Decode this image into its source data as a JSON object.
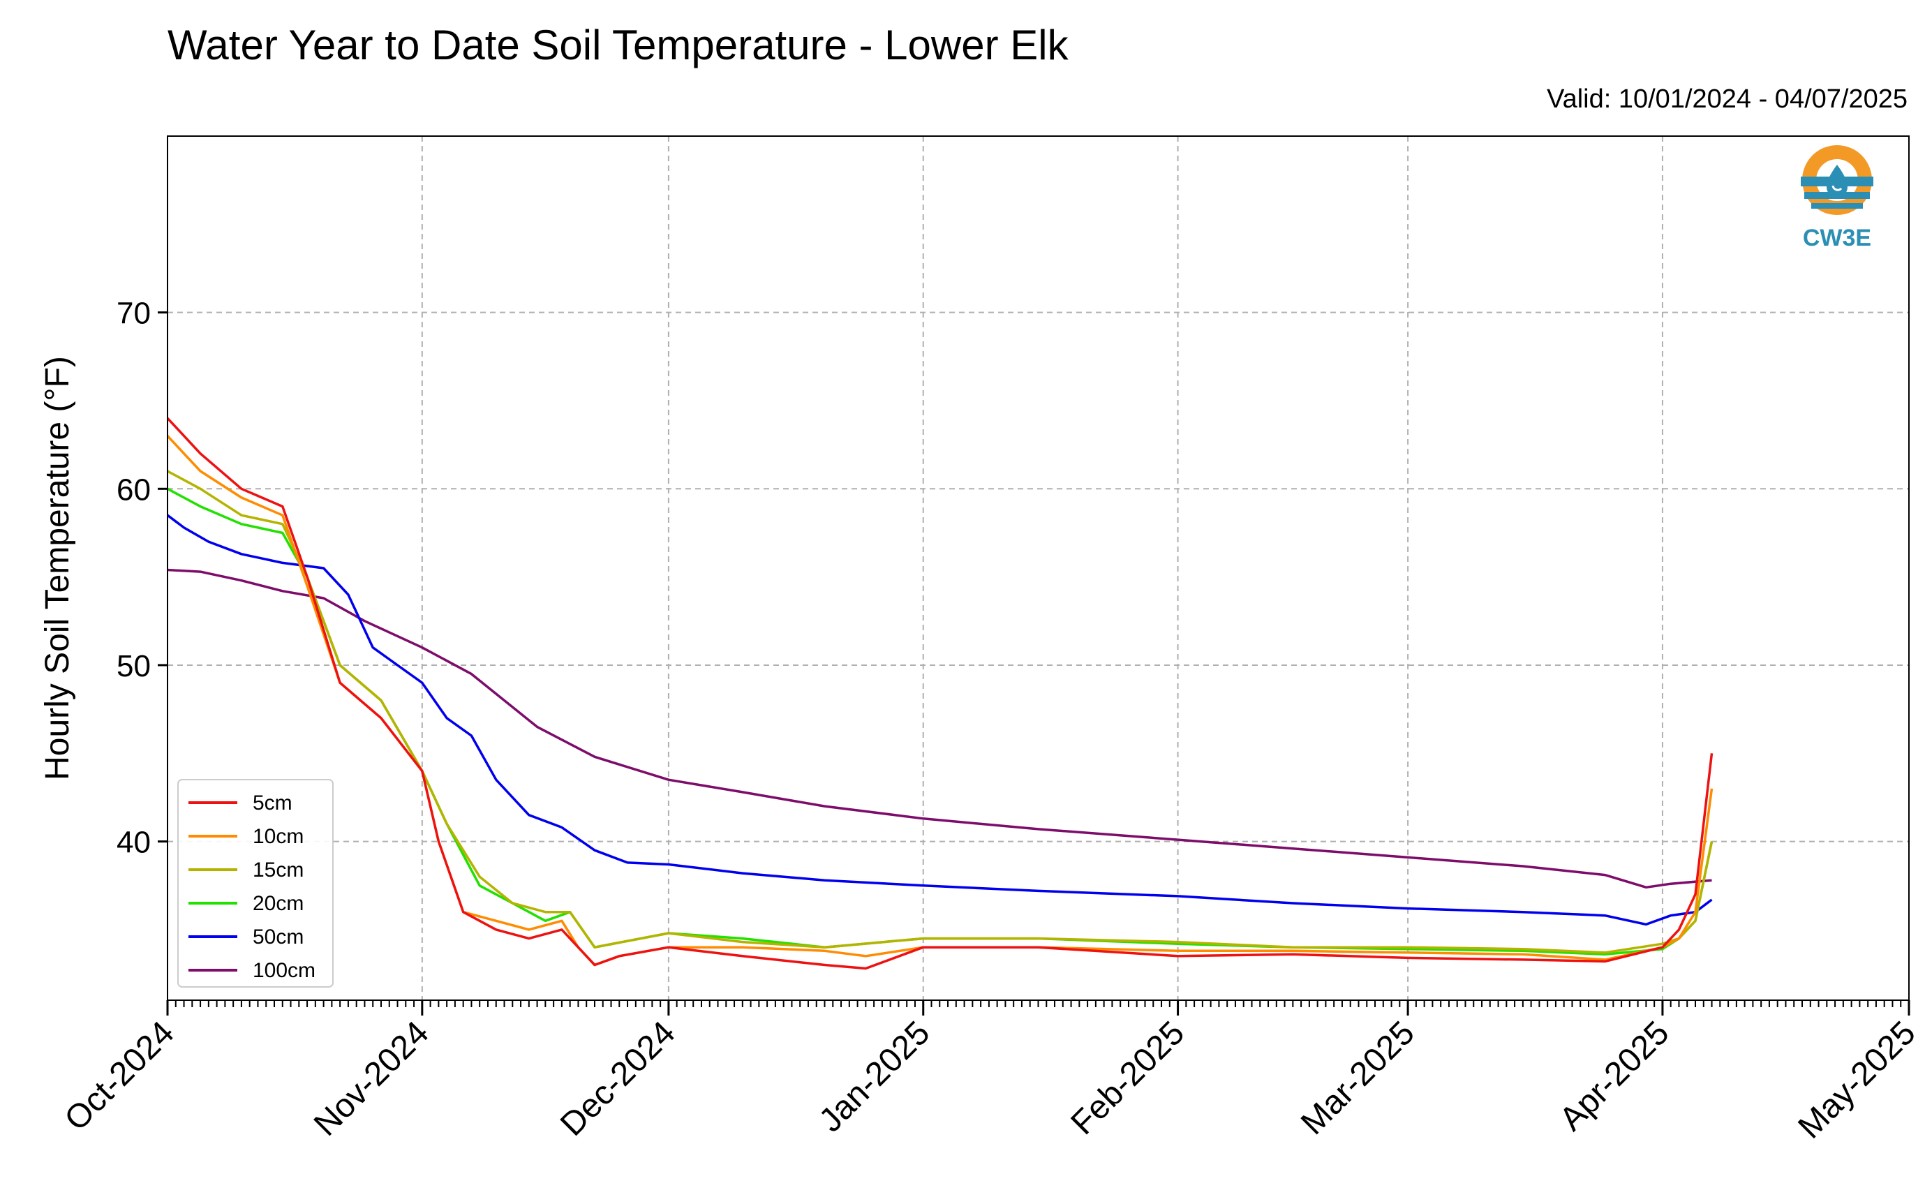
{
  "colors": {
    "5cm": "#ee1111",
    "10cm": "#ff8c00",
    "15cm": "#b4b400",
    "20cm": "#22e000",
    "50cm": "#0000ee",
    "100cm": "#7d0c6a",
    "grid": "#b0b0b0",
    "logo_orange": "#f39a26",
    "logo_blue": "#2b8fb5"
  },
  "logo": {
    "text": "CW3E",
    "icon": "water-drop-logo-icon"
  },
  "chart_data": {
    "type": "line",
    "title": "Water Year to Date Soil Temperature - Lower Elk",
    "subtitle": "Valid: 10/01/2024 - 04/07/2025",
    "xlabel": "",
    "ylabel": "Hourly Soil Temperature (°F)",
    "xlim": [
      "2024-10-01",
      "2025-05-01"
    ],
    "ylim": [
      31,
      80
    ],
    "yticks": [
      40,
      50,
      60,
      70
    ],
    "xticks": [
      {
        "date": "2024-10-01",
        "label": "Oct-2024"
      },
      {
        "date": "2024-11-01",
        "label": "Nov-2024"
      },
      {
        "date": "2024-12-01",
        "label": "Dec-2024"
      },
      {
        "date": "2025-01-01",
        "label": "Jan-2025"
      },
      {
        "date": "2025-02-01",
        "label": "Feb-2025"
      },
      {
        "date": "2025-03-01",
        "label": "Mar-2025"
      },
      {
        "date": "2025-04-01",
        "label": "Apr-2025"
      },
      {
        "date": "2025-05-01",
        "label": "May-2025"
      }
    ],
    "grid": true,
    "legend_position": "lower-left",
    "series": [
      {
        "name": "5cm",
        "key": "5cm",
        "x": [
          "2024-10-01",
          "2024-10-05",
          "2024-10-10",
          "2024-10-15",
          "2024-10-18",
          "2024-10-22",
          "2024-10-27",
          "2024-11-01",
          "2024-11-03",
          "2024-11-06",
          "2024-11-10",
          "2024-11-14",
          "2024-11-18",
          "2024-11-20",
          "2024-11-22",
          "2024-11-25",
          "2024-12-01",
          "2024-12-10",
          "2024-12-20",
          "2024-12-25",
          "2025-01-01",
          "2025-01-15",
          "2025-02-01",
          "2025-02-15",
          "2025-03-01",
          "2025-03-15",
          "2025-03-25",
          "2025-04-01",
          "2025-04-03",
          "2025-04-05",
          "2025-04-07"
        ],
        "y": [
          64,
          62,
          60,
          59,
          55,
          49,
          47,
          44,
          40,
          36,
          35,
          34.5,
          35,
          34,
          33,
          33.5,
          34,
          33.5,
          33,
          32.8,
          34,
          34,
          33.5,
          33.6,
          33.4,
          33.3,
          33.2,
          34,
          35,
          37,
          45
        ]
      },
      {
        "name": "10cm",
        "key": "10cm",
        "x": [
          "2024-10-01",
          "2024-10-05",
          "2024-10-10",
          "2024-10-15",
          "2024-10-18",
          "2024-10-22",
          "2024-10-27",
          "2024-11-01",
          "2024-11-03",
          "2024-11-06",
          "2024-11-10",
          "2024-11-14",
          "2024-11-18",
          "2024-11-20",
          "2024-11-22",
          "2024-11-25",
          "2024-12-01",
          "2024-12-10",
          "2024-12-20",
          "2024-12-25",
          "2025-01-01",
          "2025-01-15",
          "2025-02-01",
          "2025-02-15",
          "2025-03-01",
          "2025-03-15",
          "2025-03-25",
          "2025-04-01",
          "2025-04-03",
          "2025-04-05",
          "2025-04-07"
        ],
        "y": [
          63,
          61,
          59.5,
          58.5,
          54.5,
          49,
          47,
          44,
          40,
          36,
          35.5,
          35,
          35.5,
          34,
          33,
          33.5,
          34,
          34,
          33.8,
          33.5,
          34,
          34,
          33.8,
          33.8,
          33.7,
          33.6,
          33.3,
          34,
          34.5,
          36,
          43
        ]
      },
      {
        "name": "15cm",
        "key": "15cm",
        "x": [
          "2024-10-01",
          "2024-10-05",
          "2024-10-10",
          "2024-10-15",
          "2024-10-18",
          "2024-10-22",
          "2024-10-27",
          "2024-11-01",
          "2024-11-04",
          "2024-11-08",
          "2024-11-12",
          "2024-11-16",
          "2024-11-19",
          "2024-11-22",
          "2024-12-01",
          "2024-12-10",
          "2024-12-20",
          "2025-01-01",
          "2025-01-15",
          "2025-02-01",
          "2025-02-15",
          "2025-03-01",
          "2025-03-15",
          "2025-03-25",
          "2025-04-01",
          "2025-04-03",
          "2025-04-05",
          "2025-04-07"
        ],
        "y": [
          61,
          60,
          58.5,
          58,
          55,
          50,
          48,
          44,
          41,
          38,
          36.5,
          36,
          36,
          34,
          34.8,
          34.3,
          34,
          34.5,
          34.5,
          34.3,
          34,
          34,
          33.9,
          33.7,
          34.2,
          34.5,
          35.5,
          40
        ]
      },
      {
        "name": "20cm",
        "key": "20cm",
        "x": [
          "2024-10-01",
          "2024-10-05",
          "2024-10-10",
          "2024-10-15",
          "2024-10-18",
          "2024-10-22",
          "2024-10-27",
          "2024-11-01",
          "2024-11-04",
          "2024-11-08",
          "2024-11-12",
          "2024-11-16",
          "2024-11-19",
          "2024-11-22",
          "2024-12-01",
          "2024-12-10",
          "2024-12-20",
          "2025-01-01",
          "2025-01-15",
          "2025-02-01",
          "2025-02-15",
          "2025-03-01",
          "2025-03-15",
          "2025-03-25",
          "2025-04-01",
          "2025-04-03",
          "2025-04-05",
          "2025-04-07"
        ],
        "y": [
          60,
          59,
          58,
          57.5,
          55,
          50,
          48,
          44,
          41,
          37.5,
          36.5,
          35.5,
          36,
          34,
          34.8,
          34.5,
          34,
          34.5,
          34.5,
          34.2,
          34,
          33.9,
          33.8,
          33.6,
          33.9,
          34.5,
          35.5,
          40
        ]
      },
      {
        "name": "50cm",
        "key": "50cm",
        "x": [
          "2024-10-01",
          "2024-10-03",
          "2024-10-06",
          "2024-10-10",
          "2024-10-15",
          "2024-10-20",
          "2024-10-23",
          "2024-10-26",
          "2024-10-29",
          "2024-11-01",
          "2024-11-04",
          "2024-11-07",
          "2024-11-10",
          "2024-11-14",
          "2024-11-18",
          "2024-11-22",
          "2024-11-26",
          "2024-12-01",
          "2024-12-10",
          "2024-12-20",
          "2025-01-01",
          "2025-01-15",
          "2025-02-01",
          "2025-02-15",
          "2025-03-01",
          "2025-03-15",
          "2025-03-25",
          "2025-03-30",
          "2025-04-02",
          "2025-04-05",
          "2025-04-07"
        ],
        "y": [
          58.5,
          57.8,
          57,
          56.3,
          55.8,
          55.5,
          54,
          51,
          50,
          49,
          47,
          46,
          43.5,
          41.5,
          40.8,
          39.5,
          38.8,
          38.7,
          38.2,
          37.8,
          37.5,
          37.2,
          36.9,
          36.5,
          36.2,
          36,
          35.8,
          35.3,
          35.8,
          36,
          36.7
        ]
      },
      {
        "name": "100cm",
        "key": "100cm",
        "x": [
          "2024-10-01",
          "2024-10-05",
          "2024-10-10",
          "2024-10-15",
          "2024-10-20",
          "2024-10-25",
          "2024-11-01",
          "2024-11-07",
          "2024-11-15",
          "2024-11-22",
          "2024-12-01",
          "2024-12-10",
          "2024-12-20",
          "2025-01-01",
          "2025-01-15",
          "2025-02-01",
          "2025-02-15",
          "2025-03-01",
          "2025-03-15",
          "2025-03-25",
          "2025-03-30",
          "2025-04-02",
          "2025-04-07"
        ],
        "y": [
          55.4,
          55.3,
          54.8,
          54.2,
          53.8,
          52.5,
          51,
          49.5,
          46.5,
          44.8,
          43.5,
          42.8,
          42,
          41.3,
          40.7,
          40.1,
          39.6,
          39.1,
          38.6,
          38.1,
          37.4,
          37.6,
          37.8
        ]
      }
    ]
  }
}
